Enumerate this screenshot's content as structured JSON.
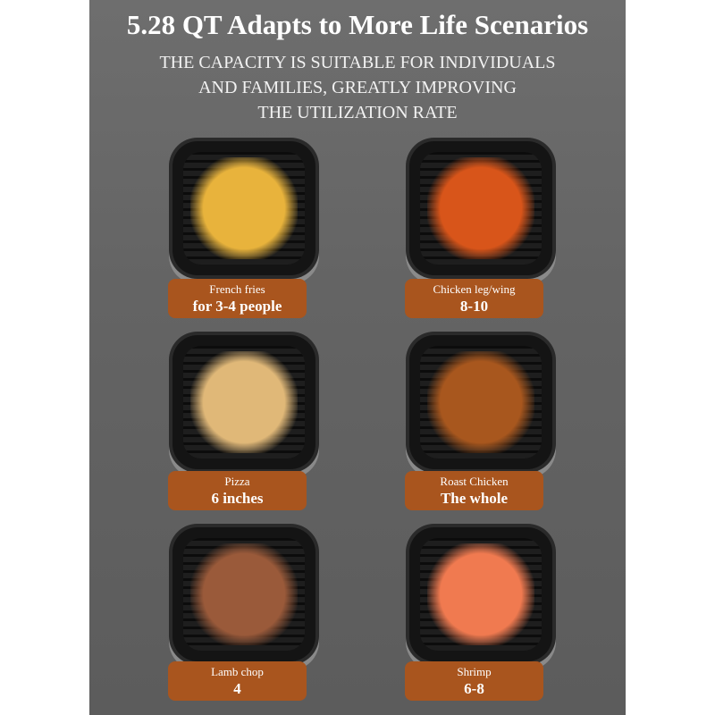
{
  "header": {
    "title": "5.28 QT Adapts to More Life Scenarios",
    "subtitle_lines": [
      "THE CAPACITY IS SUITABLE FOR INDIVIDUALS",
      "AND FAMILIES, GREATLY IMPROVING",
      "THE UTILIZATION RATE"
    ]
  },
  "colors": {
    "label_bg": "#a9551e",
    "panel_bg": "#666666"
  },
  "items": [
    {
      "name": "French fries",
      "amount": "for 3-4 people",
      "food_color": "#e8b33c"
    },
    {
      "name": "Chicken leg/wing",
      "amount": "8-10",
      "food_color": "#d8551a"
    },
    {
      "name": "Pizza",
      "amount": "6 inches",
      "food_color": "#e0b878"
    },
    {
      "name": "Roast Chicken",
      "amount": "The whole",
      "food_color": "#a8571e"
    },
    {
      "name": "Lamb chop",
      "amount": "4",
      "food_color": "#9a5a3a"
    },
    {
      "name": "Shrimp",
      "amount": "6-8",
      "food_color": "#f07a50"
    }
  ]
}
